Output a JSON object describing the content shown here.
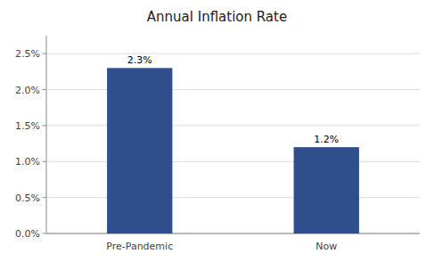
{
  "chart_data": {
    "type": "bar",
    "title": "Annual Inflation Rate",
    "categories": [
      "Pre-Pandemic",
      "Now"
    ],
    "values": [
      2.3,
      1.2
    ],
    "value_labels": [
      "2.3%",
      "1.2%"
    ],
    "data_labels": true,
    "color": "#2E4F8C",
    "ylim": [
      0,
      2.75
    ],
    "yticks": [
      {
        "value": 0.0,
        "label": "0.0%"
      },
      {
        "value": 0.5,
        "label": "0.5%"
      },
      {
        "value": 1.0,
        "label": "1.0%"
      },
      {
        "value": 1.5,
        "label": "1.5%"
      },
      {
        "value": 2.0,
        "label": "2.0%"
      },
      {
        "value": 2.5,
        "label": "2.5%"
      }
    ],
    "grid": true
  }
}
